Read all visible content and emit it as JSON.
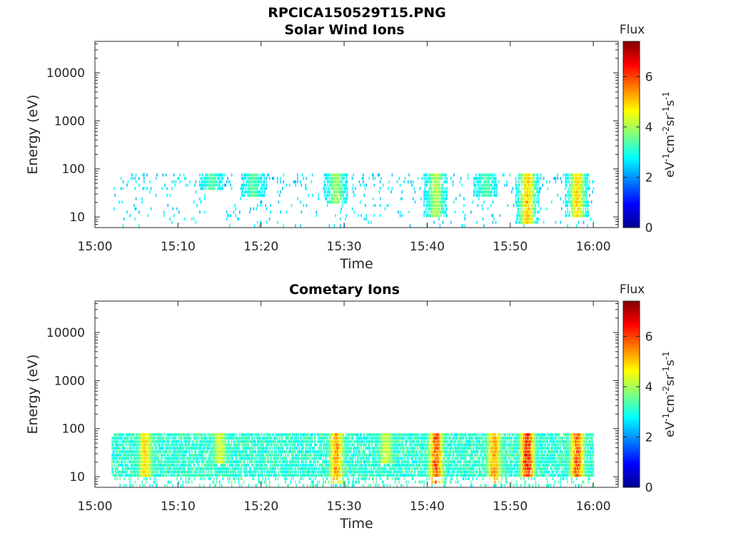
{
  "figure_title": "RPCICA150529T15.PNG",
  "chart_data": [
    {
      "type": "heatmap",
      "title": "Solar Wind Ions",
      "xlabel": "Time",
      "ylabel": "Energy (eV)",
      "y_scale": "log",
      "xlim": [
        "15:00",
        "16:03"
      ],
      "ylim": [
        6,
        45000
      ],
      "x_ticks": [
        "15:00",
        "15:10",
        "15:20",
        "15:30",
        "15:40",
        "15:50",
        "16:00"
      ],
      "y_ticks": [
        "10",
        "100",
        "1000",
        "10000"
      ],
      "colorbar": {
        "label": "Flux",
        "units": "eV-1cm-2sr-1s-1",
        "range": [
          0,
          7.4
        ],
        "ticks": [
          "0",
          "2",
          "4",
          "6"
        ],
        "colormap": "jet"
      },
      "data_extent": {
        "time": [
          "15:02",
          "16:00"
        ],
        "energy_ev": [
          6,
          80
        ]
      },
      "features": [
        {
          "time": "15:14",
          "energy_ev": [
            40,
            80
          ],
          "flux": 3.5
        },
        {
          "time": "15:19",
          "energy_ev": [
            30,
            80
          ],
          "flux": 3.5
        },
        {
          "time": "15:29",
          "energy_ev": [
            20,
            80
          ],
          "flux": 4.0
        },
        {
          "time": "15:41",
          "energy_ev": [
            10,
            80
          ],
          "flux": 4.2
        },
        {
          "time": "15:47",
          "energy_ev": [
            30,
            80
          ],
          "flux": 3.5
        },
        {
          "time": "15:52",
          "energy_ev": [
            8,
            80
          ],
          "flux": 5.2
        },
        {
          "time": "15:58",
          "energy_ev": [
            10,
            80
          ],
          "flux": 5.0
        }
      ]
    },
    {
      "type": "heatmap",
      "title": "Cometary Ions",
      "xlabel": "Time",
      "ylabel": "Energy (eV)",
      "y_scale": "log",
      "xlim": [
        "15:00",
        "16:03"
      ],
      "ylim": [
        6,
        45000
      ],
      "x_ticks": [
        "15:00",
        "15:10",
        "15:20",
        "15:30",
        "15:40",
        "15:50",
        "16:00"
      ],
      "y_ticks": [
        "10",
        "100",
        "1000",
        "10000"
      ],
      "colorbar": {
        "label": "Flux",
        "units": "eV-1cm-2sr-1s-1",
        "range": [
          0,
          7.4
        ],
        "ticks": [
          "0",
          "2",
          "4",
          "6"
        ],
        "colormap": "jet"
      },
      "data_extent": {
        "time": [
          "15:02",
          "16:00"
        ],
        "energy_ev": [
          6,
          80
        ]
      },
      "features": [
        {
          "time": "15:06",
          "energy_ev": [
            10,
            80
          ],
          "flux": 5.0
        },
        {
          "time": "15:15",
          "energy_ev": [
            20,
            80
          ],
          "flux": 4.5
        },
        {
          "time": "15:29",
          "energy_ev": [
            8,
            80
          ],
          "flux": 5.5
        },
        {
          "time": "15:35",
          "energy_ev": [
            20,
            80
          ],
          "flux": 4.5
        },
        {
          "time": "15:41",
          "energy_ev": [
            8,
            80
          ],
          "flux": 6.0
        },
        {
          "time": "15:48",
          "energy_ev": [
            8,
            80
          ],
          "flux": 5.5
        },
        {
          "time": "15:52",
          "energy_ev": [
            10,
            80
          ],
          "flux": 6.5
        },
        {
          "time": "15:58",
          "energy_ev": [
            10,
            80
          ],
          "flux": 6.0
        }
      ]
    }
  ]
}
